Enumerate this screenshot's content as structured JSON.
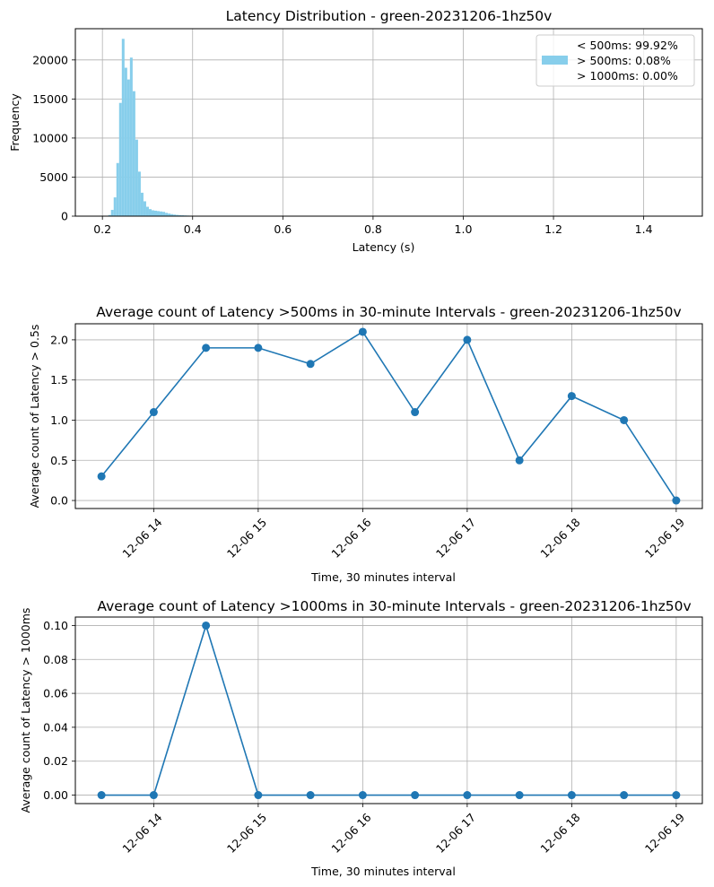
{
  "chart_data": [
    {
      "type": "bar",
      "title": "Latency Distribution - green-20231206-1hz50v",
      "xlabel": "Latency (s)",
      "ylabel": "Frequency",
      "xlim": [
        0.14,
        1.53
      ],
      "ylim": [
        0,
        24000
      ],
      "xticks": [
        0.2,
        0.4,
        0.6,
        0.8,
        1.0,
        1.2,
        1.4
      ],
      "xtick_labels": [
        "0.2",
        "0.4",
        "0.6",
        "0.8",
        "1.0",
        "1.2",
        "1.4"
      ],
      "yticks": [
        0,
        5000,
        10000,
        15000,
        20000
      ],
      "ytick_labels": [
        "0",
        "5000",
        "10000",
        "15000",
        "20000"
      ],
      "grid": true,
      "color": "#87ceeb",
      "legend_placement": "top-right",
      "legend": [
        "< 500ms: 99.92%",
        "> 500ms: 0.08%",
        "> 1000ms: 0.00%"
      ],
      "bins": [
        {
          "x": 0.216,
          "value": 150
        },
        {
          "x": 0.222,
          "value": 800
        },
        {
          "x": 0.228,
          "value": 2400
        },
        {
          "x": 0.234,
          "value": 6800
        },
        {
          "x": 0.24,
          "value": 14500
        },
        {
          "x": 0.246,
          "value": 22700
        },
        {
          "x": 0.252,
          "value": 19000
        },
        {
          "x": 0.258,
          "value": 17500
        },
        {
          "x": 0.264,
          "value": 20300
        },
        {
          "x": 0.27,
          "value": 16000
        },
        {
          "x": 0.276,
          "value": 9800
        },
        {
          "x": 0.282,
          "value": 5700
        },
        {
          "x": 0.288,
          "value": 3000
        },
        {
          "x": 0.294,
          "value": 1900
        },
        {
          "x": 0.3,
          "value": 1200
        },
        {
          "x": 0.306,
          "value": 900
        },
        {
          "x": 0.312,
          "value": 750
        },
        {
          "x": 0.318,
          "value": 700
        },
        {
          "x": 0.324,
          "value": 650
        },
        {
          "x": 0.33,
          "value": 600
        },
        {
          "x": 0.336,
          "value": 550
        },
        {
          "x": 0.342,
          "value": 420
        },
        {
          "x": 0.348,
          "value": 330
        },
        {
          "x": 0.354,
          "value": 260
        },
        {
          "x": 0.36,
          "value": 200
        },
        {
          "x": 0.366,
          "value": 160
        },
        {
          "x": 0.372,
          "value": 130
        },
        {
          "x": 0.378,
          "value": 110
        },
        {
          "x": 0.384,
          "value": 90
        },
        {
          "x": 0.39,
          "value": 75
        },
        {
          "x": 0.396,
          "value": 60
        },
        {
          "x": 0.402,
          "value": 50
        },
        {
          "x": 0.408,
          "value": 40
        },
        {
          "x": 0.414,
          "value": 30
        },
        {
          "x": 0.42,
          "value": 25
        }
      ]
    },
    {
      "type": "line",
      "title": "Average count of Latency >500ms in 30-minute Intervals - green-20231206-1hz50v",
      "xlabel": "Time, 30 minutes interval",
      "ylabel": "Average count of Latency > 0.5s",
      "ylim": [
        -0.1,
        2.2
      ],
      "yticks": [
        0.0,
        0.5,
        1.0,
        1.5,
        2.0
      ],
      "ytick_labels": [
        "0.0",
        "0.5",
        "1.0",
        "1.5",
        "2.0"
      ],
      "xticks_hours": [
        14,
        15,
        16,
        17,
        18,
        19
      ],
      "xtick_labels": [
        "12-06 14",
        "12-06 15",
        "12-06 16",
        "12-06 17",
        "12-06 18",
        "12-06 19"
      ],
      "x": [
        "12-06 13:30",
        "12-06 14:00",
        "12-06 14:30",
        "12-06 15:00",
        "12-06 15:30",
        "12-06 16:00",
        "12-06 16:30",
        "12-06 17:00",
        "12-06 17:30",
        "12-06 18:00",
        "12-06 18:30",
        "12-06 19:00"
      ],
      "x_hours": [
        13.5,
        14,
        14.5,
        15,
        15.5,
        16,
        16.5,
        17,
        17.5,
        18,
        18.5,
        19
      ],
      "values": [
        0.3,
        1.1,
        1.9,
        1.9,
        1.7,
        2.1,
        1.1,
        2.0,
        0.5,
        1.3,
        1.0,
        0.0
      ],
      "grid": true,
      "color": "#1f77b4"
    },
    {
      "type": "line",
      "title": "Average count of Latency >1000ms in 30-minute Intervals - green-20231206-1hz50v",
      "xlabel": "Time, 30 minutes interval",
      "ylabel": "Average count of Latency > 1000ms",
      "ylim": [
        -0.005,
        0.105
      ],
      "yticks": [
        0.0,
        0.02,
        0.04,
        0.06,
        0.08,
        0.1
      ],
      "ytick_labels": [
        "0.00",
        "0.02",
        "0.04",
        "0.06",
        "0.08",
        "0.10"
      ],
      "xticks_hours": [
        14,
        15,
        16,
        17,
        18,
        19
      ],
      "xtick_labels": [
        "12-06 14",
        "12-06 15",
        "12-06 16",
        "12-06 17",
        "12-06 18",
        "12-06 19"
      ],
      "x": [
        "12-06 13:30",
        "12-06 14:00",
        "12-06 14:30",
        "12-06 15:00",
        "12-06 15:30",
        "12-06 16:00",
        "12-06 16:30",
        "12-06 17:00",
        "12-06 17:30",
        "12-06 18:00",
        "12-06 18:30",
        "12-06 19:00"
      ],
      "x_hours": [
        13.5,
        14,
        14.5,
        15,
        15.5,
        16,
        16.5,
        17,
        17.5,
        18,
        18.5,
        19
      ],
      "values": [
        0.0,
        0.0,
        0.1,
        0.0,
        0.0,
        0.0,
        0.0,
        0.0,
        0.0,
        0.0,
        0.0,
        0.0
      ],
      "grid": true,
      "color": "#1f77b4"
    }
  ]
}
